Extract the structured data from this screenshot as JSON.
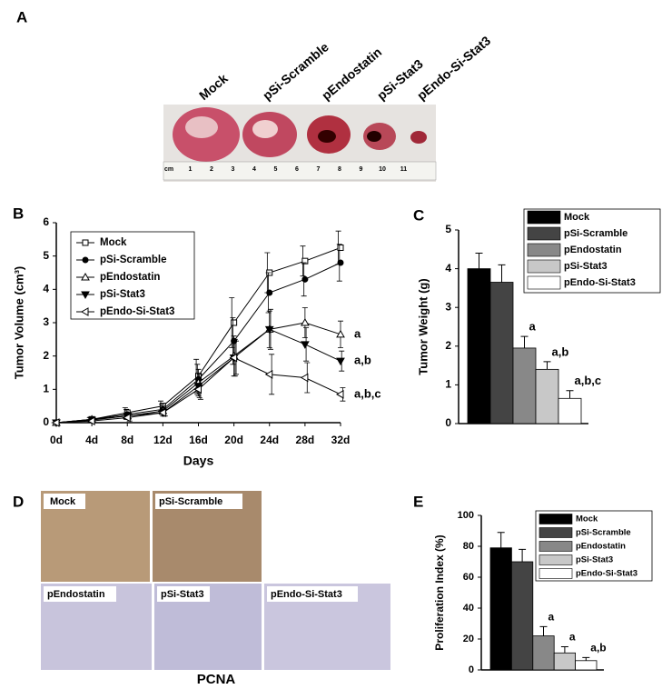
{
  "figure": {
    "panels": [
      "A",
      "B",
      "C",
      "D",
      "E"
    ]
  },
  "tumor_photo": {
    "labels": [
      "Mock",
      "pSi-Scramble",
      "pEndostatin",
      "pSi-Stat3",
      "pEndo-Si-Stat3"
    ],
    "ruler": [
      "cm",
      "1",
      "2",
      "3",
      "4",
      "5",
      "6",
      "7",
      "8",
      "9",
      "10",
      "11"
    ]
  },
  "pcna_photo": {
    "labels": [
      "Mock",
      "pSi-Scramble",
      "pEndostatin",
      "pSi-Stat3",
      "pEndo-Si-Stat3"
    ],
    "caption": "PCNA"
  },
  "chart_data": [
    {
      "type": "line",
      "xlabel": "Days",
      "ylabel": "Tumor Volume (cm³)",
      "categories": [
        "0d",
        "4d",
        "8d",
        "12d",
        "16d",
        "20d",
        "24d",
        "28d",
        "32d"
      ],
      "ylim": [
        0,
        6
      ],
      "yticks": [
        0,
        1,
        2,
        3,
        4,
        5,
        6
      ],
      "series": [
        {
          "name": "Mock",
          "marker": "square-open",
          "values": [
            0,
            0.1,
            0.3,
            0.5,
            1.4,
            3.0,
            4.5,
            4.85,
            5.25
          ],
          "errors": [
            0,
            0.05,
            0.15,
            0.15,
            0.5,
            0.75,
            0.6,
            0.45,
            0.5
          ]
        },
        {
          "name": "pSi-Scramble",
          "marker": "circle-filled",
          "values": [
            0,
            0.1,
            0.25,
            0.4,
            1.3,
            2.45,
            3.9,
            4.3,
            4.8
          ],
          "errors": [
            0,
            0.05,
            0.15,
            0.15,
            0.45,
            0.7,
            0.6,
            0.5,
            0.55
          ]
        },
        {
          "name": "pEndostatin",
          "marker": "triangle-open",
          "values": [
            0,
            0.1,
            0.2,
            0.35,
            1.2,
            2.0,
            2.8,
            3.0,
            2.65
          ],
          "errors": [
            0,
            0.05,
            0.1,
            0.15,
            0.4,
            0.6,
            0.55,
            0.45,
            0.4
          ]
        },
        {
          "name": "pSi-Stat3",
          "marker": "triangle-down-filled",
          "values": [
            0,
            0.08,
            0.2,
            0.3,
            1.1,
            1.95,
            2.8,
            2.35,
            1.85
          ],
          "errors": [
            0,
            0.05,
            0.1,
            0.1,
            0.35,
            0.55,
            0.6,
            0.5,
            0.3
          ]
        },
        {
          "name": "pEndo-Si-Stat3",
          "marker": "triangle-left-open",
          "values": [
            0,
            0.05,
            0.15,
            0.3,
            1.0,
            1.95,
            1.45,
            1.35,
            0.85
          ],
          "errors": [
            0,
            0.05,
            0.1,
            0.1,
            0.3,
            0.5,
            0.6,
            0.45,
            0.2
          ]
        }
      ],
      "annotations": [
        null,
        null,
        "a",
        "a,b",
        "a,b,c"
      ]
    },
    {
      "type": "bar",
      "ylabel": "Tumor Weight (g)",
      "categories": [
        "Mock",
        "pSi-Scramble",
        "pEndostatin",
        "pSi-Stat3",
        "pEndo-Si-Stat3"
      ],
      "values": [
        4.0,
        3.65,
        1.95,
        1.4,
        0.65
      ],
      "errors": [
        0.4,
        0.45,
        0.3,
        0.2,
        0.2
      ],
      "annotations": [
        null,
        null,
        "a",
        "a,b",
        "a,b,c"
      ],
      "colors": [
        "#000000",
        "#444444",
        "#888888",
        "#c8c8c8",
        "#ffffff"
      ],
      "ylim": [
        0,
        5
      ],
      "yticks": [
        0,
        1,
        2,
        3,
        4,
        5
      ]
    },
    {
      "type": "bar",
      "ylabel": "Proliferation Index (%)",
      "categories": [
        "Mock",
        "pSi-Scramble",
        "pEndostatin",
        "pSi-Stat3",
        "pEndo-Si-Stat3"
      ],
      "values": [
        79,
        70,
        22,
        11,
        6
      ],
      "errors": [
        10,
        8,
        6,
        4,
        2
      ],
      "annotations": [
        null,
        null,
        "a",
        "a",
        "a,b"
      ],
      "colors": [
        "#000000",
        "#444444",
        "#888888",
        "#c8c8c8",
        "#ffffff"
      ],
      "ylim": [
        0,
        100
      ],
      "yticks": [
        0,
        20,
        40,
        60,
        80,
        100
      ]
    }
  ]
}
